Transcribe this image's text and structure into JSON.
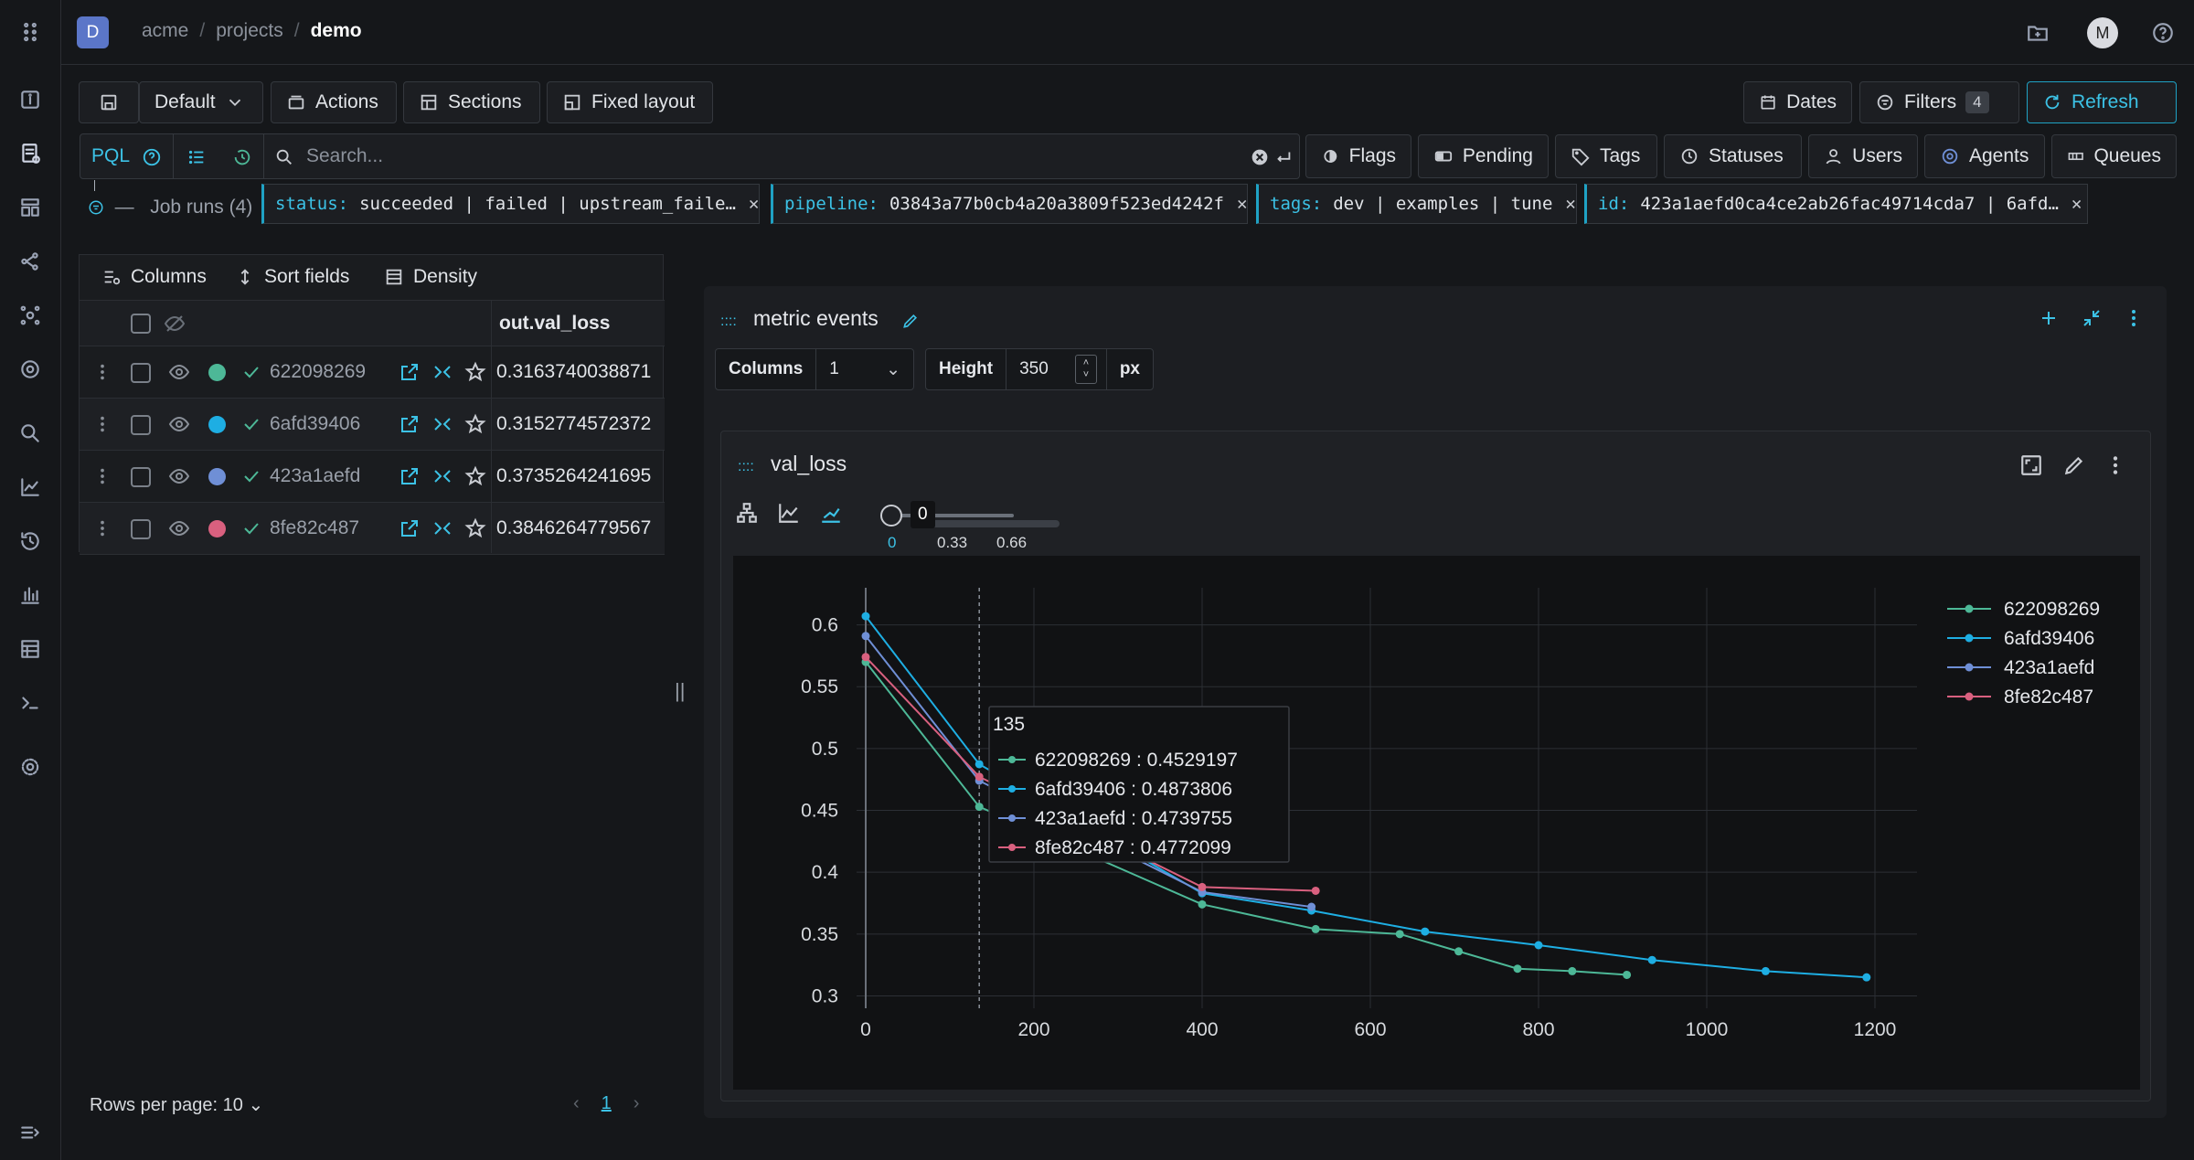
{
  "breadcrumb": {
    "org_badge": "D",
    "items": [
      "acme",
      "projects",
      "demo"
    ]
  },
  "avatar": "M",
  "toolbar": {
    "preset": "Default",
    "actions": "Actions",
    "sections": "Sections",
    "fixed_layout": "Fixed layout",
    "dates": "Dates",
    "filters": "Filters",
    "filters_count": "4",
    "refresh": "Refresh"
  },
  "search": {
    "mode": "PQL",
    "placeholder": "Search..."
  },
  "filter_buttons": {
    "flags": "Flags",
    "pending": "Pending",
    "tags": "Tags",
    "statuses": "Statuses",
    "users": "Users",
    "agents": "Agents",
    "queues": "Queues"
  },
  "chips": [
    {
      "key": "status:",
      "value": "succeeded | failed | upstream_faile…"
    },
    {
      "key": "pipeline:",
      "value": "03843a77b0cb4a20a3809f523ed4242f"
    },
    {
      "key": "tags:",
      "value": "dev | examples | tune"
    },
    {
      "key": "id:",
      "value": "423a1aefd0ca4ce2ab26fac49714cda7 | 6afd…"
    }
  ],
  "job_runs_label": "Job runs (4)",
  "table": {
    "columns_btn": "Columns",
    "sort_btn": "Sort fields",
    "density_btn": "Density",
    "column_header": "out.val_loss",
    "rows": [
      {
        "id": "622098269",
        "val": "0.3163740038871",
        "color": "#4db897"
      },
      {
        "id": "6afd39406",
        "val": "0.3152774572372",
        "color": "#1eaee3"
      },
      {
        "id": "423a1aefd",
        "val": "0.3735264241695",
        "color": "#6f8fd6"
      },
      {
        "id": "8fe82c487",
        "val": "0.3846264779567",
        "color": "#d9607f"
      }
    ],
    "rows_per_page": "Rows per page: 10",
    "page": "1"
  },
  "metric_panel": {
    "title": "metric events",
    "columns_label": "Columns",
    "columns_value": "1",
    "height_label": "Height",
    "height_value": "350",
    "height_unit": "px"
  },
  "chart_card": {
    "title": "val_loss",
    "smoothing_value": "0",
    "smoothing_ticks": [
      "0",
      "0.33",
      "0.66"
    ]
  },
  "chart_data": {
    "type": "line",
    "title": "val_loss",
    "xlim": [
      0,
      1250
    ],
    "ylim": [
      0.29,
      0.63
    ],
    "x_ticks": [
      0,
      200,
      400,
      600,
      800,
      1000,
      1200
    ],
    "y_ticks": [
      0.3,
      0.35,
      0.4,
      0.45,
      0.5,
      0.55,
      0.6
    ],
    "x_tick_labels": [
      "0",
      "200",
      "400",
      "600",
      "800",
      "1000",
      "1200"
    ],
    "y_tick_labels": [
      "0.3",
      "0.35",
      "0.4",
      "0.45",
      "0.5",
      "0.55",
      "0.6"
    ],
    "legend_position": "top-right",
    "series": [
      {
        "name": "622098269",
        "color": "#4db897",
        "points": [
          [
            0,
            0.57
          ],
          [
            135,
            0.4529197
          ],
          [
            400,
            0.374
          ],
          [
            535,
            0.354
          ],
          [
            635,
            0.35
          ],
          [
            705,
            0.336
          ],
          [
            775,
            0.322
          ],
          [
            840,
            0.32
          ],
          [
            905,
            0.317
          ]
        ]
      },
      {
        "name": "6afd39406",
        "color": "#1eaee3",
        "points": [
          [
            0,
            0.607
          ],
          [
            135,
            0.4873806
          ],
          [
            400,
            0.383
          ],
          [
            530,
            0.369
          ],
          [
            665,
            0.352
          ],
          [
            800,
            0.341
          ],
          [
            935,
            0.329
          ],
          [
            1070,
            0.32
          ],
          [
            1190,
            0.315
          ]
        ]
      },
      {
        "name": "423a1aefd",
        "color": "#6f8fd6",
        "points": [
          [
            0,
            0.591
          ],
          [
            135,
            0.4739755
          ],
          [
            400,
            0.384
          ],
          [
            530,
            0.372
          ]
        ]
      },
      {
        "name": "8fe82c487",
        "color": "#d9607f",
        "points": [
          [
            0,
            0.574
          ],
          [
            135,
            0.4772099
          ],
          [
            400,
            0.388
          ],
          [
            535,
            0.385
          ]
        ]
      }
    ],
    "hover": {
      "x": 135,
      "x_label": "135",
      "entries": [
        {
          "name": "622098269",
          "value": "0.4529197"
        },
        {
          "name": "6afd39406",
          "value": "0.4873806"
        },
        {
          "name": "423a1aefd",
          "value": "0.4739755"
        },
        {
          "name": "8fe82c487",
          "value": "0.4772099"
        }
      ]
    }
  }
}
